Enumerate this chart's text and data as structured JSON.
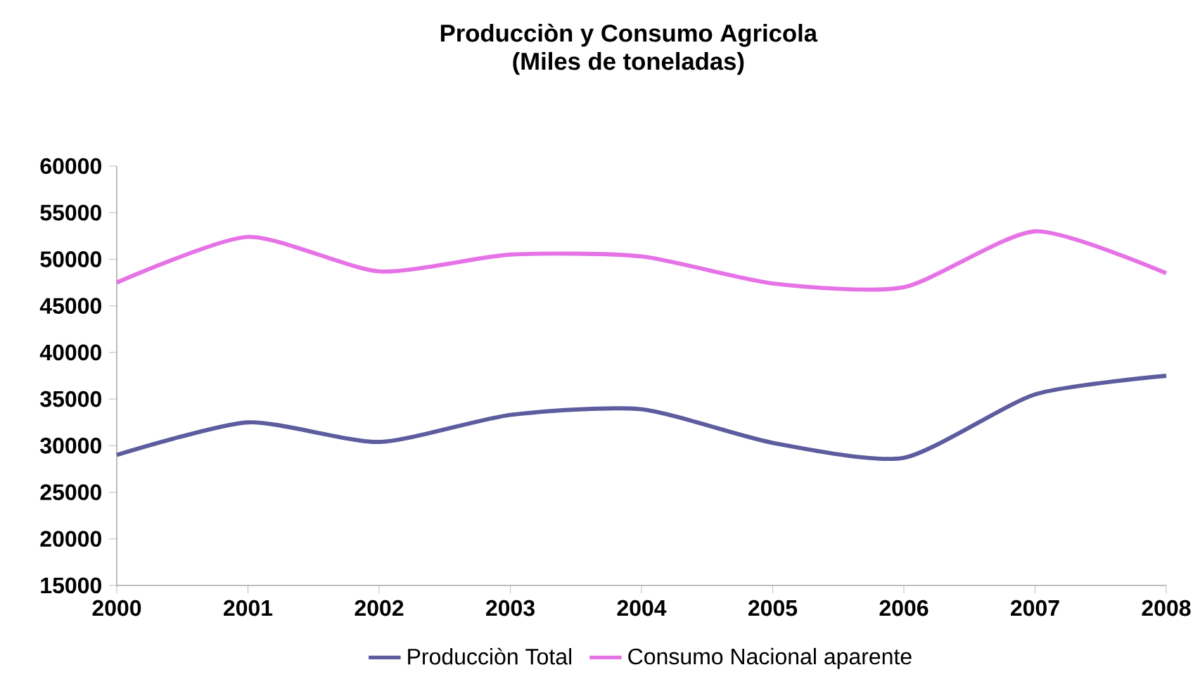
{
  "chart_data": {
    "type": "line",
    "title": "Producciòn y Consumo Agricola",
    "subtitle": "(Miles de toneladas)",
    "x": [
      2000,
      2001,
      2002,
      2003,
      2004,
      2005,
      2006,
      2007,
      2008
    ],
    "series": [
      {
        "name": "Producciòn Total",
        "color": "#5c5c9e",
        "values": [
          29000,
          32500,
          30400,
          33300,
          33900,
          30300,
          28700,
          35500,
          37500
        ]
      },
      {
        "name": "Consumo Nacional aparente",
        "color": "#e673e6",
        "values": [
          47500,
          52400,
          48700,
          50500,
          50300,
          47400,
          47000,
          53000,
          48500
        ]
      }
    ],
    "xlim": [
      2000,
      2008
    ],
    "xticks": [
      2000,
      2001,
      2002,
      2003,
      2004,
      2005,
      2006,
      2007,
      2008
    ],
    "ylim": [
      15000,
      60000
    ],
    "yticks": [
      15000,
      20000,
      25000,
      30000,
      35000,
      40000,
      45000,
      50000,
      55000,
      60000
    ],
    "grid": false,
    "legend": "bottom",
    "marker": "none",
    "line_style": "solid"
  }
}
